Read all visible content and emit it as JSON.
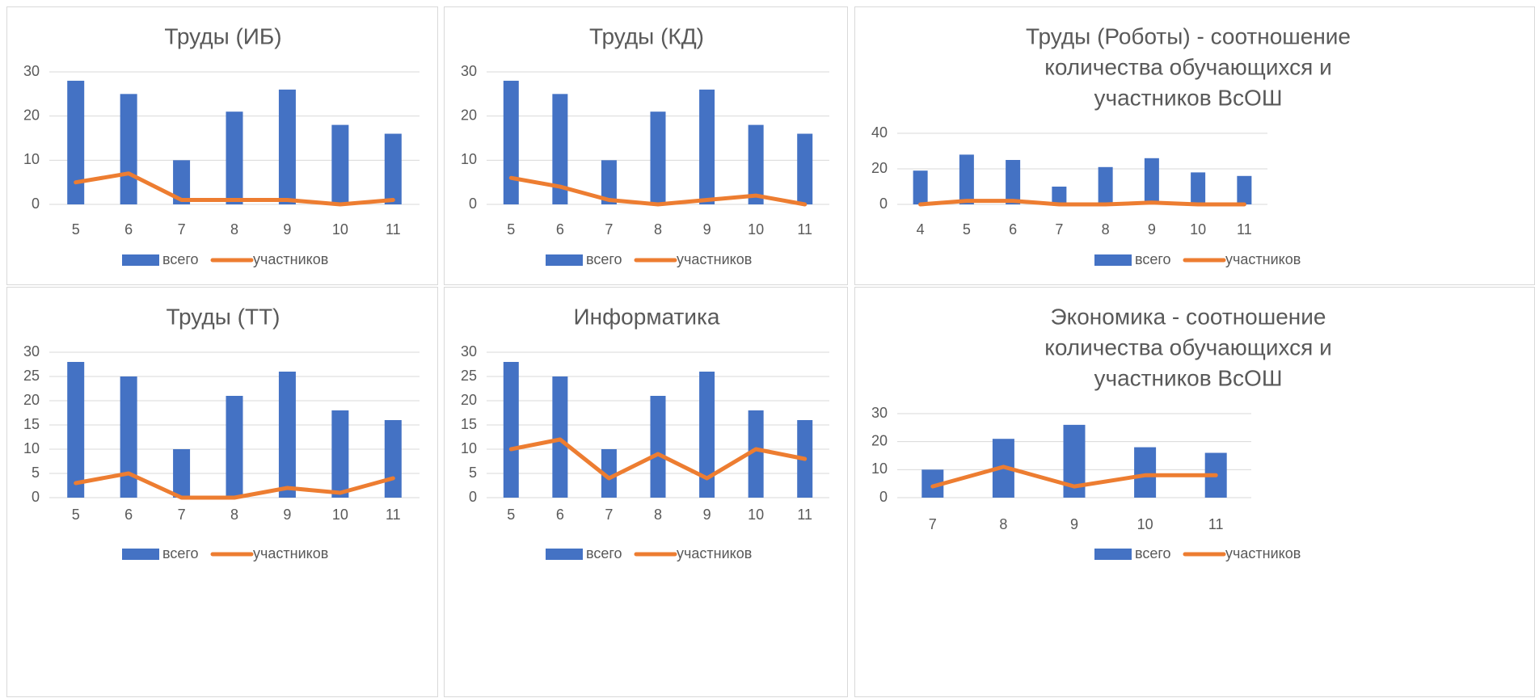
{
  "colors": {
    "bars": "#4472c4",
    "line": "#ed7d31",
    "grid": "#d9d9d9",
    "text": "#595959"
  },
  "legend": {
    "bars": "всего",
    "line": "участников"
  },
  "chart_data": [
    {
      "type": "bar",
      "title": "Труды (ИБ)",
      "categories": [
        "5",
        "6",
        "7",
        "8",
        "9",
        "10",
        "11"
      ],
      "series": [
        {
          "name": "всего",
          "type": "bar",
          "values": [
            28,
            25,
            10,
            21,
            26,
            18,
            16
          ]
        },
        {
          "name": "участников",
          "type": "line",
          "values": [
            5,
            7,
            1,
            1,
            1,
            0,
            1
          ]
        }
      ],
      "ylim": [
        0,
        30
      ],
      "yticks": [
        0,
        10,
        20,
        30
      ],
      "grid": true,
      "legend_position": "bottom"
    },
    {
      "type": "bar",
      "title": "Труды (КД)",
      "categories": [
        "5",
        "6",
        "7",
        "8",
        "9",
        "10",
        "11"
      ],
      "series": [
        {
          "name": "всего",
          "type": "bar",
          "values": [
            28,
            25,
            10,
            21,
            26,
            18,
            16
          ]
        },
        {
          "name": "участников",
          "type": "line",
          "values": [
            6,
            4,
            1,
            0,
            1,
            2,
            0
          ]
        }
      ],
      "ylim": [
        0,
        30
      ],
      "yticks": [
        0,
        10,
        20,
        30
      ],
      "grid": true,
      "legend_position": "bottom"
    },
    {
      "type": "bar",
      "title": "Труды (Роботы) - соотношение количества обучающихся и участников ВсОШ",
      "title_lines": [
        "Труды (Роботы) - соотношение",
        "количества обучающихся и",
        "участников ВсОШ"
      ],
      "categories": [
        "4",
        "5",
        "6",
        "7",
        "8",
        "9",
        "10",
        "11"
      ],
      "series": [
        {
          "name": "всего",
          "type": "bar",
          "values": [
            19,
            28,
            25,
            10,
            21,
            26,
            18,
            16
          ]
        },
        {
          "name": "участников",
          "type": "line",
          "values": [
            0,
            2,
            2,
            0,
            0,
            1,
            0,
            0
          ]
        }
      ],
      "ylim": [
        0,
        40
      ],
      "yticks": [
        0,
        20,
        40
      ],
      "grid": true,
      "legend_position": "bottom"
    },
    {
      "type": "bar",
      "title": "Труды (ТТ)",
      "categories": [
        "5",
        "6",
        "7",
        "8",
        "9",
        "10",
        "11"
      ],
      "series": [
        {
          "name": "всего",
          "type": "bar",
          "values": [
            28,
            25,
            10,
            21,
            26,
            18,
            16
          ]
        },
        {
          "name": "участников",
          "type": "line",
          "values": [
            3,
            5,
            0,
            0,
            2,
            1,
            4
          ]
        }
      ],
      "ylim": [
        0,
        30
      ],
      "yticks": [
        0,
        5,
        10,
        15,
        20,
        25,
        30
      ],
      "grid": true,
      "legend_position": "bottom"
    },
    {
      "type": "bar",
      "title": "Информатика",
      "categories": [
        "5",
        "6",
        "7",
        "8",
        "9",
        "10",
        "11"
      ],
      "series": [
        {
          "name": "всего",
          "type": "bar",
          "values": [
            28,
            25,
            10,
            21,
            26,
            18,
            16
          ]
        },
        {
          "name": "участников",
          "type": "line",
          "values": [
            10,
            12,
            4,
            9,
            4,
            10,
            8
          ]
        }
      ],
      "ylim": [
        0,
        30
      ],
      "yticks": [
        0,
        5,
        10,
        15,
        20,
        25,
        30
      ],
      "grid": true,
      "legend_position": "bottom"
    },
    {
      "type": "bar",
      "title": "Экономика - соотношение количества обучающихся и участников ВсОШ",
      "title_lines": [
        "Экономика - соотношение",
        "количества обучающихся и",
        "участников ВсОШ"
      ],
      "categories": [
        "7",
        "8",
        "9",
        "10",
        "11"
      ],
      "series": [
        {
          "name": "всего",
          "type": "bar",
          "values": [
            10,
            21,
            26,
            18,
            16
          ]
        },
        {
          "name": "участников",
          "type": "line",
          "values": [
            4,
            11,
            4,
            8,
            8
          ]
        }
      ],
      "ylim": [
        0,
        30
      ],
      "yticks": [
        0,
        10,
        20,
        30
      ],
      "grid": true,
      "legend_position": "bottom"
    }
  ]
}
